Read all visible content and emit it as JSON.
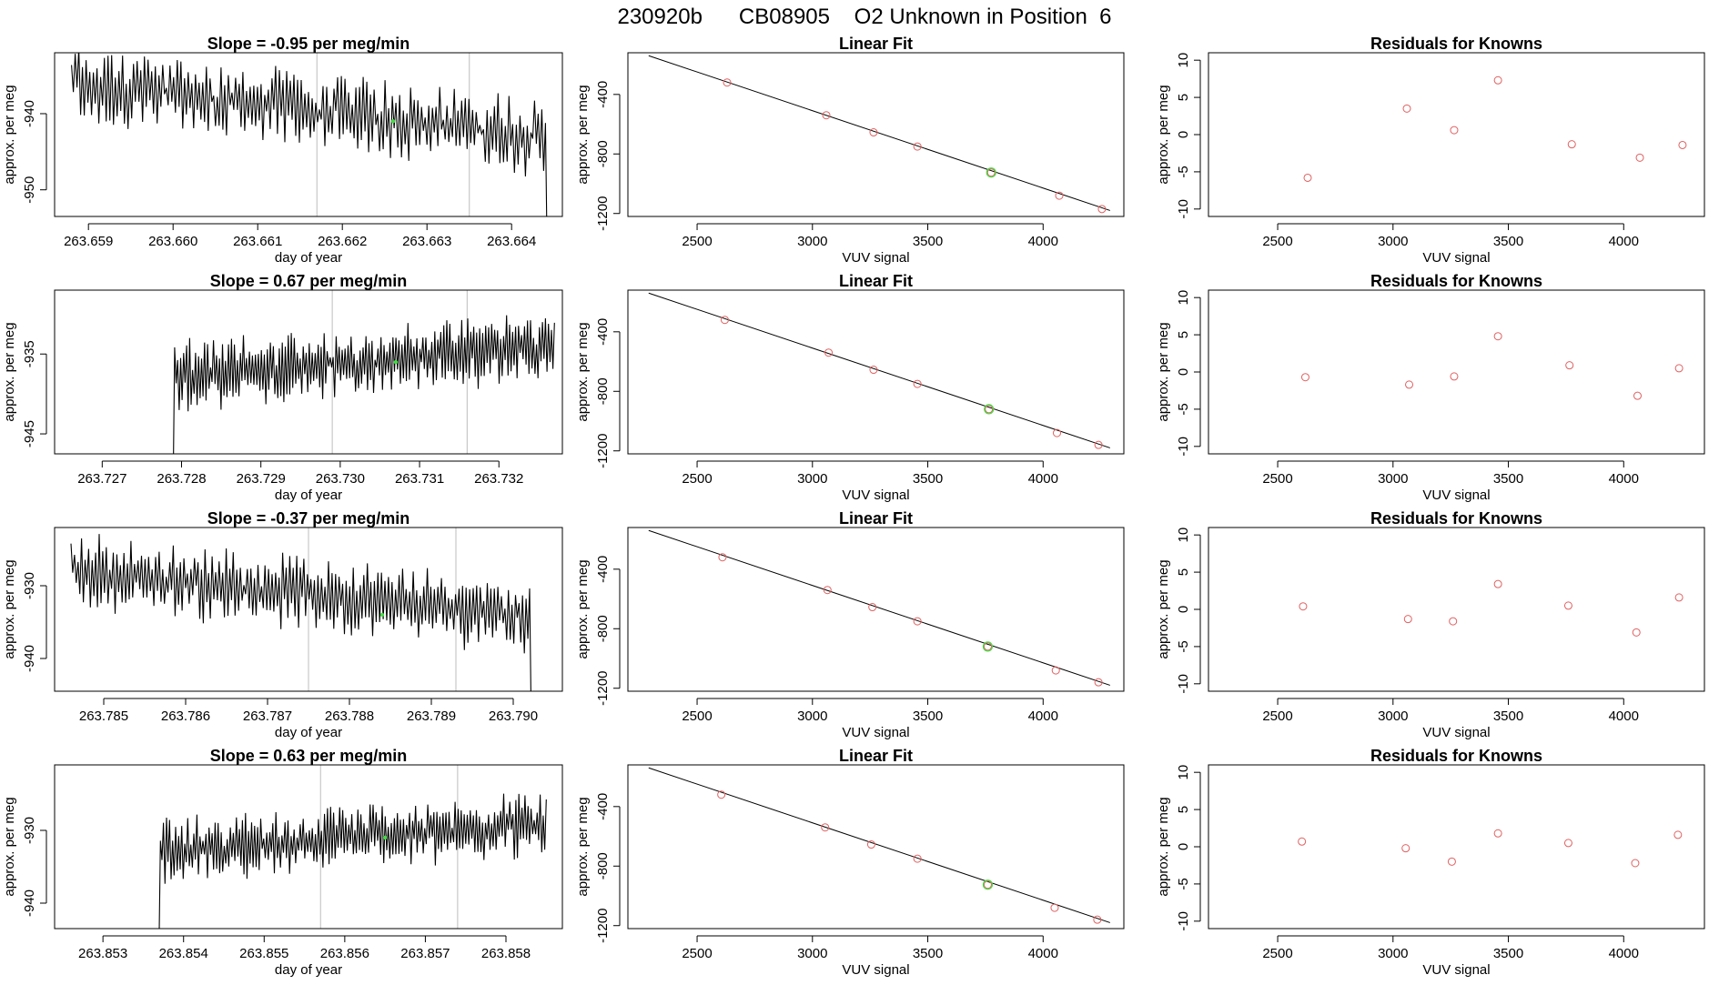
{
  "figure_title": "230920b      CB08905    O2 Unknown in Position  6",
  "colors": {
    "series": "#000000",
    "marker": "#e06060",
    "highlight": "#44dd44",
    "vline": "#c8c8c8"
  },
  "chart_data": [
    {
      "type": "line",
      "panel": "timeseries",
      "title": "Slope =  -0.95  per meg/min",
      "xlabel": "day of year",
      "ylabel": "approx. per meg",
      "xlim": [
        263.6586,
        263.6646
      ],
      "ylim": [
        -953.5,
        -932
      ],
      "xticks": [
        263.659,
        263.66,
        263.661,
        263.662,
        263.663,
        263.664
      ],
      "xtick_labels": [
        "263.659",
        "263.660",
        "263.661",
        "263.662",
        "263.663",
        "263.664"
      ],
      "yticks": [
        -940,
        -950
      ],
      "ytick_labels": [
        "-940",
        "-950"
      ],
      "vlines": [
        263.6617,
        263.6635
      ],
      "highlight_point": {
        "x": 263.6626,
        "y": -941
      },
      "trend": {
        "start": 263.6588,
        "end": 263.6644,
        "y_start": -936,
        "y_end": -943,
        "amplitude": 4,
        "noise": 4,
        "gap_until": null,
        "drop_at_end": -960
      }
    },
    {
      "type": "scatter",
      "panel": "linear_fit",
      "title": "Linear Fit",
      "xlabel": "VUV signal",
      "ylabel": "approx. per meg",
      "xlim": [
        2200,
        4350
      ],
      "ylim": [
        -1220,
        -120
      ],
      "xticks": [
        2500,
        3000,
        3500,
        4000
      ],
      "xtick_labels": [
        "2500",
        "3000",
        "3500",
        "4000"
      ],
      "yticks": [
        -400,
        -800,
        -1200
      ],
      "ytick_labels": [
        "-400",
        "-800",
        "-1200"
      ],
      "fit_line": {
        "x": [
          2290,
          4290
        ],
        "y": [
          -140,
          -1180
        ]
      },
      "points": {
        "x": [
          2630,
          3060,
          3265,
          3455,
          3775,
          4070,
          4255
        ],
        "y": [
          -320,
          -540,
          -655,
          -750,
          -925,
          -1080,
          -1170
        ]
      },
      "unknown_point": {
        "x": 3775,
        "y": -925
      }
    },
    {
      "type": "scatter",
      "panel": "residuals",
      "title": "Residuals for Knowns",
      "xlabel": "VUV signal",
      "ylabel": "approx. per meg",
      "xlim": [
        2200,
        4350
      ],
      "ylim": [
        -11,
        11
      ],
      "xticks": [
        2500,
        3000,
        3500,
        4000
      ],
      "xtick_labels": [
        "2500",
        "3000",
        "3500",
        "4000"
      ],
      "yticks": [
        10,
        5,
        0,
        -5,
        -10
      ],
      "ytick_labels": [
        "10",
        "5",
        "0",
        "-5",
        "-10"
      ],
      "points": {
        "x": [
          2630,
          3060,
          3265,
          3455,
          3775,
          4070,
          4255
        ],
        "y": [
          -5.8,
          3.5,
          0.6,
          7.3,
          -1.3,
          -3.1,
          -1.4
        ]
      }
    },
    {
      "type": "line",
      "panel": "timeseries",
      "title": "Slope =  0.67  per meg/min",
      "xlabel": "day of year",
      "ylabel": "approx. per meg",
      "xlim": [
        263.7264,
        263.7328
      ],
      "ylim": [
        -947.5,
        -927
      ],
      "xticks": [
        263.727,
        263.728,
        263.729,
        263.73,
        263.731,
        263.732
      ],
      "xtick_labels": [
        "263.727",
        "263.728",
        "263.729",
        "263.730",
        "263.731",
        "263.732"
      ],
      "yticks": [
        -935,
        -945
      ],
      "ytick_labels": [
        "-935",
        "-945"
      ],
      "vlines": [
        263.7299,
        263.7316
      ],
      "highlight_point": {
        "x": 263.7307,
        "y": -936
      },
      "trend": {
        "start": 263.7278,
        "end": 263.7327,
        "y_start": -938,
        "y_end": -934,
        "amplitude": 3.5,
        "noise": 3,
        "gap_until": 263.7279,
        "drop_at_end": null
      }
    },
    {
      "type": "scatter",
      "panel": "linear_fit",
      "title": "Linear Fit",
      "xlabel": "VUV signal",
      "ylabel": "approx. per meg",
      "xlim": [
        2200,
        4350
      ],
      "ylim": [
        -1220,
        -120
      ],
      "xticks": [
        2500,
        3000,
        3500,
        4000
      ],
      "xtick_labels": [
        "2500",
        "3000",
        "3500",
        "4000"
      ],
      "yticks": [
        -400,
        -800,
        -1200
      ],
      "ytick_labels": [
        "-400",
        "-800",
        "-1200"
      ],
      "fit_line": {
        "x": [
          2290,
          4290
        ],
        "y": [
          -140,
          -1180
        ]
      },
      "points": {
        "x": [
          2620,
          3070,
          3265,
          3455,
          3765,
          4060,
          4240
        ],
        "y": [
          -320,
          -540,
          -655,
          -750,
          -920,
          -1080,
          -1160
        ]
      },
      "unknown_point": {
        "x": 3765,
        "y": -920
      }
    },
    {
      "type": "scatter",
      "panel": "residuals",
      "title": "Residuals for Knowns",
      "xlabel": "VUV signal",
      "ylabel": "approx. per meg",
      "xlim": [
        2200,
        4350
      ],
      "ylim": [
        -11,
        11
      ],
      "xticks": [
        2500,
        3000,
        3500,
        4000
      ],
      "xtick_labels": [
        "2500",
        "3000",
        "3500",
        "4000"
      ],
      "yticks": [
        10,
        5,
        0,
        -5,
        -10
      ],
      "ytick_labels": [
        "10",
        "5",
        "0",
        "-5",
        "-10"
      ],
      "points": {
        "x": [
          2620,
          3070,
          3265,
          3455,
          3765,
          4060,
          4240
        ],
        "y": [
          -0.7,
          -1.7,
          -0.6,
          4.8,
          0.9,
          -3.2,
          0.5
        ]
      }
    },
    {
      "type": "line",
      "panel": "timeseries",
      "title": "Slope =  -0.37  per meg/min",
      "xlabel": "day of year",
      "ylabel": "approx. per meg",
      "xlim": [
        263.7844,
        263.7906
      ],
      "ylim": [
        -944.5,
        -922
      ],
      "xticks": [
        263.785,
        263.786,
        263.787,
        263.788,
        263.789,
        263.79
      ],
      "xtick_labels": [
        "263.785",
        "263.786",
        "263.787",
        "263.788",
        "263.789",
        "263.790"
      ],
      "yticks": [
        -930,
        -940
      ],
      "ytick_labels": [
        "-930",
        "-940"
      ],
      "vlines": [
        263.7875,
        263.7893
      ],
      "highlight_point": {
        "x": 263.7884,
        "y": -934
      },
      "trend": {
        "start": 263.7846,
        "end": 263.7902,
        "y_start": -928,
        "y_end": -934,
        "amplitude": 4,
        "noise": 3.5,
        "gap_until": null,
        "drop_at_end": -950
      }
    },
    {
      "type": "scatter",
      "panel": "linear_fit",
      "title": "Linear Fit",
      "xlabel": "VUV signal",
      "ylabel": "approx. per meg",
      "xlim": [
        2200,
        4350
      ],
      "ylim": [
        -1220,
        -120
      ],
      "xticks": [
        2500,
        3000,
        3500,
        4000
      ],
      "xtick_labels": [
        "2500",
        "3000",
        "3500",
        "4000"
      ],
      "yticks": [
        -400,
        -800,
        -1200
      ],
      "ytick_labels": [
        "-400",
        "-800",
        "-1200"
      ],
      "fit_line": {
        "x": [
          2290,
          4290
        ],
        "y": [
          -140,
          -1180
        ]
      },
      "points": {
        "x": [
          2610,
          3065,
          3260,
          3455,
          3760,
          4055,
          4240
        ],
        "y": [
          -320,
          -540,
          -655,
          -750,
          -920,
          -1080,
          -1160
        ]
      },
      "unknown_point": {
        "x": 3760,
        "y": -920
      }
    },
    {
      "type": "scatter",
      "panel": "residuals",
      "title": "Residuals for Knowns",
      "xlabel": "VUV signal",
      "ylabel": "approx. per meg",
      "xlim": [
        2200,
        4350
      ],
      "ylim": [
        -11,
        11
      ],
      "xticks": [
        2500,
        3000,
        3500,
        4000
      ],
      "xtick_labels": [
        "2500",
        "3000",
        "3500",
        "4000"
      ],
      "yticks": [
        10,
        5,
        0,
        -5,
        -10
      ],
      "ytick_labels": [
        "10",
        "5",
        "0",
        "-5",
        "-10"
      ],
      "points": {
        "x": [
          2610,
          3065,
          3260,
          3455,
          3760,
          4055,
          4240
        ],
        "y": [
          0.4,
          -1.3,
          -1.6,
          3.4,
          0.5,
          -3.1,
          1.6
        ]
      }
    },
    {
      "type": "line",
      "panel": "timeseries",
      "title": "Slope =  0.63  per meg/min",
      "xlabel": "day of year",
      "ylabel": "approx. per meg",
      "xlim": [
        263.8524,
        263.8587
      ],
      "ylim": [
        -943.5,
        -921
      ],
      "xticks": [
        263.853,
        263.854,
        263.855,
        263.856,
        263.857,
        263.858
      ],
      "xtick_labels": [
        "263.853",
        "263.854",
        "263.855",
        "263.856",
        "263.857",
        "263.858"
      ],
      "yticks": [
        -930,
        -940
      ],
      "ytick_labels": [
        "-930",
        "-940"
      ],
      "vlines": [
        263.8557,
        263.8574
      ],
      "highlight_point": {
        "x": 263.8565,
        "y": -931
      },
      "trend": {
        "start": 263.8536,
        "end": 263.8585,
        "y_start": -933,
        "y_end": -929,
        "amplitude": 3.5,
        "noise": 3,
        "gap_until": 263.8537,
        "drop_at_end": null
      }
    },
    {
      "type": "scatter",
      "panel": "linear_fit",
      "title": "Linear Fit",
      "xlabel": "VUV signal",
      "ylabel": "approx. per meg",
      "xlim": [
        2200,
        4350
      ],
      "ylim": [
        -1220,
        -120
      ],
      "xticks": [
        2500,
        3000,
        3500,
        4000
      ],
      "xtick_labels": [
        "2500",
        "3000",
        "3500",
        "4000"
      ],
      "yticks": [
        -400,
        -800,
        -1200
      ],
      "ytick_labels": [
        "-400",
        "-800",
        "-1200"
      ],
      "fit_line": {
        "x": [
          2290,
          4290
        ],
        "y": [
          -140,
          -1180
        ]
      },
      "points": {
        "x": [
          2605,
          3055,
          3255,
          3455,
          3760,
          4050,
          4235
        ],
        "y": [
          -320,
          -540,
          -655,
          -750,
          -925,
          -1080,
          -1160
        ]
      },
      "unknown_point": {
        "x": 3760,
        "y": -925
      }
    },
    {
      "type": "scatter",
      "panel": "residuals",
      "title": "Residuals for Knowns",
      "xlabel": "VUV signal",
      "ylabel": "approx. per meg",
      "xlim": [
        2200,
        4350
      ],
      "ylim": [
        -11,
        11
      ],
      "xticks": [
        2500,
        3000,
        3500,
        4000
      ],
      "xtick_labels": [
        "2500",
        "3000",
        "3500",
        "4000"
      ],
      "yticks": [
        10,
        5,
        0,
        -5,
        -10
      ],
      "ytick_labels": [
        "10",
        "5",
        "0",
        "-5",
        "-10"
      ],
      "points": {
        "x": [
          2605,
          3055,
          3255,
          3455,
          3760,
          4050,
          4235
        ],
        "y": [
          0.7,
          -0.2,
          -2.0,
          1.8,
          0.5,
          -2.2,
          1.6
        ]
      }
    }
  ]
}
